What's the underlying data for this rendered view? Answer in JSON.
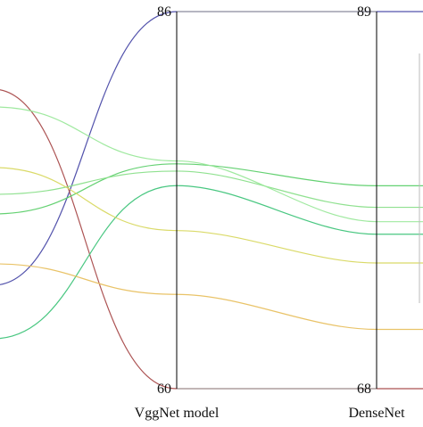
{
  "chart_data": {
    "type": "parallel-coordinates",
    "axes": [
      {
        "label": "VggNet model",
        "min": 60,
        "max": 86
      },
      {
        "label": "DenseNet",
        "min": 68,
        "max": 89
      }
    ],
    "series": [
      {
        "values": [
          86,
          89
        ],
        "color": "#4a4aa8"
      },
      {
        "values": [
          60,
          68
        ],
        "color": "#a84a4a"
      },
      {
        "values": [
          75.5,
          79.3
        ],
        "color": "#5ccf6a"
      },
      {
        "values": [
          75,
          78.1
        ],
        "color": "#8adf8a"
      },
      {
        "values": [
          75.7,
          77.3
        ],
        "color": "#9be89b"
      },
      {
        "values": [
          74,
          76.6
        ],
        "color": "#3fc47a"
      },
      {
        "values": [
          70.9,
          75
        ],
        "color": "#d8d860"
      },
      {
        "values": [
          66.5,
          71.3
        ],
        "color": "#e8c060"
      }
    ],
    "grid": false,
    "legend": "none"
  }
}
